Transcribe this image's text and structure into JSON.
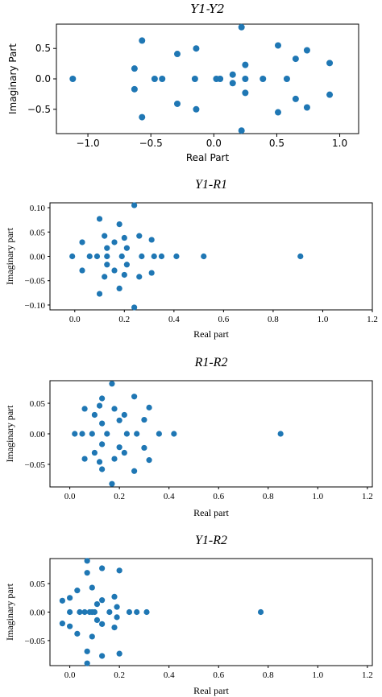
{
  "chart_data": [
    {
      "type": "scatter",
      "title": "Y1-Y2",
      "xlabel": "Real Part",
      "ylabel": "Imaginary Part",
      "xlim": [
        -1.25,
        1.15
      ],
      "ylim": [
        -0.9,
        0.9
      ],
      "xticks": [
        -1.0,
        -0.5,
        0.0,
        0.5,
        1.0
      ],
      "xtick_labels": [
        "−1.0",
        "−0.5",
        "0.0",
        "0.5",
        "1.0"
      ],
      "yticks": [
        0.5,
        0.0,
        -0.5
      ],
      "ytick_labels": [
        "0.5",
        "0.0",
        "−0.5"
      ],
      "grid": false,
      "points": [
        {
          "x": -1.12,
          "y": 0.0
        },
        {
          "x": -0.63,
          "y": 0.17
        },
        {
          "x": -0.63,
          "y": -0.17
        },
        {
          "x": -0.57,
          "y": 0.63
        },
        {
          "x": -0.57,
          "y": -0.63
        },
        {
          "x": -0.47,
          "y": 0.0
        },
        {
          "x": -0.41,
          "y": 0.0
        },
        {
          "x": -0.29,
          "y": 0.41
        },
        {
          "x": -0.29,
          "y": -0.41
        },
        {
          "x": -0.15,
          "y": 0.0
        },
        {
          "x": -0.14,
          "y": 0.5
        },
        {
          "x": -0.14,
          "y": -0.5
        },
        {
          "x": 0.02,
          "y": 0.0
        },
        {
          "x": 0.05,
          "y": 0.0
        },
        {
          "x": 0.15,
          "y": 0.07
        },
        {
          "x": 0.15,
          "y": -0.07
        },
        {
          "x": 0.22,
          "y": 0.85
        },
        {
          "x": 0.22,
          "y": -0.85
        },
        {
          "x": 0.25,
          "y": 0.23
        },
        {
          "x": 0.25,
          "y": -0.23
        },
        {
          "x": 0.25,
          "y": 0.0
        },
        {
          "x": 0.39,
          "y": 0.0
        },
        {
          "x": 0.51,
          "y": 0.55
        },
        {
          "x": 0.51,
          "y": -0.55
        },
        {
          "x": 0.58,
          "y": 0.0
        },
        {
          "x": 0.65,
          "y": 0.33
        },
        {
          "x": 0.65,
          "y": -0.33
        },
        {
          "x": 0.74,
          "y": 0.47
        },
        {
          "x": 0.74,
          "y": -0.47
        },
        {
          "x": 0.92,
          "y": 0.26
        },
        {
          "x": 0.92,
          "y": -0.26
        }
      ]
    },
    {
      "type": "scatter",
      "title": "Y1-R1",
      "xlabel": "Real part",
      "ylabel": "Imaginary part",
      "xlim": [
        -0.1,
        1.2
      ],
      "ylim": [
        -0.11,
        0.11
      ],
      "xticks": [
        0.0,
        0.2,
        0.4,
        0.6,
        0.8,
        1.0,
        1.2
      ],
      "xtick_labels": [
        "0.0",
        "0.2",
        "0.4",
        "0.6",
        "0.8",
        "1.0",
        "1.2"
      ],
      "yticks": [
        0.1,
        0.05,
        0.0,
        -0.05,
        -0.1
      ],
      "ytick_labels": [
        "0.10",
        "0.05",
        "0.00",
        "−0.05",
        "−0.10"
      ],
      "grid": false,
      "points": [
        {
          "x": -0.01,
          "y": 0.0
        },
        {
          "x": 0.03,
          "y": 0.029
        },
        {
          "x": 0.03,
          "y": -0.029
        },
        {
          "x": 0.06,
          "y": 0.0
        },
        {
          "x": 0.09,
          "y": 0.0
        },
        {
          "x": 0.1,
          "y": 0.077
        },
        {
          "x": 0.1,
          "y": -0.077
        },
        {
          "x": 0.12,
          "y": 0.042
        },
        {
          "x": 0.12,
          "y": -0.042
        },
        {
          "x": 0.13,
          "y": 0.017
        },
        {
          "x": 0.13,
          "y": -0.017
        },
        {
          "x": 0.13,
          "y": 0.0
        },
        {
          "x": 0.16,
          "y": 0.029
        },
        {
          "x": 0.16,
          "y": -0.029
        },
        {
          "x": 0.18,
          "y": 0.066
        },
        {
          "x": 0.18,
          "y": -0.066
        },
        {
          "x": 0.19,
          "y": 0.0
        },
        {
          "x": 0.2,
          "y": 0.038
        },
        {
          "x": 0.2,
          "y": -0.038
        },
        {
          "x": 0.21,
          "y": 0.017
        },
        {
          "x": 0.21,
          "y": -0.017
        },
        {
          "x": 0.24,
          "y": 0.105
        },
        {
          "x": 0.24,
          "y": -0.105
        },
        {
          "x": 0.26,
          "y": 0.042
        },
        {
          "x": 0.26,
          "y": -0.042
        },
        {
          "x": 0.27,
          "y": 0.0
        },
        {
          "x": 0.31,
          "y": 0.034
        },
        {
          "x": 0.31,
          "y": -0.034
        },
        {
          "x": 0.32,
          "y": 0.0
        },
        {
          "x": 0.35,
          "y": 0.0
        },
        {
          "x": 0.41,
          "y": 0.0
        },
        {
          "x": 0.52,
          "y": 0.0
        },
        {
          "x": 0.91,
          "y": 0.0
        }
      ]
    },
    {
      "type": "scatter",
      "title": "R1-R2",
      "xlabel": "Real part",
      "ylabel": "Imaginary part",
      "xlim": [
        -0.08,
        1.22
      ],
      "ylim": [
        -0.087,
        0.087
      ],
      "xticks": [
        0.0,
        0.2,
        0.4,
        0.6,
        0.8,
        1.0,
        1.2
      ],
      "xtick_labels": [
        "0.0",
        "0.2",
        "0.4",
        "0.6",
        "0.8",
        "1.0",
        "1.2"
      ],
      "yticks": [
        0.05,
        0.0,
        -0.05
      ],
      "ytick_labels": [
        "0.05",
        "0.00",
        "−0.05"
      ],
      "grid": false,
      "points": [
        {
          "x": 0.02,
          "y": 0.0
        },
        {
          "x": 0.05,
          "y": 0.0
        },
        {
          "x": 0.06,
          "y": 0.041
        },
        {
          "x": 0.06,
          "y": -0.041
        },
        {
          "x": 0.09,
          "y": 0.0
        },
        {
          "x": 0.1,
          "y": 0.031
        },
        {
          "x": 0.1,
          "y": -0.031
        },
        {
          "x": 0.12,
          "y": 0.046
        },
        {
          "x": 0.12,
          "y": -0.046
        },
        {
          "x": 0.13,
          "y": 0.058
        },
        {
          "x": 0.13,
          "y": -0.058
        },
        {
          "x": 0.13,
          "y": 0.017
        },
        {
          "x": 0.13,
          "y": -0.017
        },
        {
          "x": 0.15,
          "y": 0.0
        },
        {
          "x": 0.17,
          "y": 0.082
        },
        {
          "x": 0.17,
          "y": -0.082
        },
        {
          "x": 0.18,
          "y": 0.041
        },
        {
          "x": 0.18,
          "y": -0.041
        },
        {
          "x": 0.2,
          "y": 0.022
        },
        {
          "x": 0.2,
          "y": -0.022
        },
        {
          "x": 0.22,
          "y": 0.031
        },
        {
          "x": 0.22,
          "y": -0.031
        },
        {
          "x": 0.23,
          "y": 0.0
        },
        {
          "x": 0.26,
          "y": 0.061
        },
        {
          "x": 0.26,
          "y": -0.061
        },
        {
          "x": 0.27,
          "y": 0.0
        },
        {
          "x": 0.3,
          "y": 0.023
        },
        {
          "x": 0.3,
          "y": -0.023
        },
        {
          "x": 0.32,
          "y": 0.043
        },
        {
          "x": 0.32,
          "y": -0.043
        },
        {
          "x": 0.36,
          "y": 0.0
        },
        {
          "x": 0.42,
          "y": 0.0
        },
        {
          "x": 0.85,
          "y": 0.0
        }
      ]
    },
    {
      "type": "scatter",
      "title": "Y1-R2",
      "xlabel": "Real part",
      "ylabel": "Imaginary part",
      "xlim": [
        -0.08,
        1.22
      ],
      "ylim": [
        -0.094,
        0.094
      ],
      "xticks": [
        0.0,
        0.2,
        0.4,
        0.6,
        0.8,
        1.0,
        1.2
      ],
      "xtick_labels": [
        "0.0",
        "0.2",
        "0.4",
        "0.6",
        "0.8",
        "1.0",
        "1.2"
      ],
      "yticks": [
        0.05,
        0.0,
        -0.05
      ],
      "ytick_labels": [
        "0.05",
        "0.00",
        "−0.05"
      ],
      "grid": false,
      "points": [
        {
          "x": -0.03,
          "y": 0.02
        },
        {
          "x": -0.03,
          "y": -0.02
        },
        {
          "x": 0.0,
          "y": 0.025
        },
        {
          "x": 0.0,
          "y": -0.025
        },
        {
          "x": 0.0,
          "y": 0.0
        },
        {
          "x": 0.03,
          "y": 0.038
        },
        {
          "x": 0.03,
          "y": -0.038
        },
        {
          "x": 0.04,
          "y": 0.0
        },
        {
          "x": 0.06,
          "y": 0.0
        },
        {
          "x": 0.07,
          "y": 0.09
        },
        {
          "x": 0.07,
          "y": -0.09
        },
        {
          "x": 0.07,
          "y": 0.069
        },
        {
          "x": 0.07,
          "y": -0.069
        },
        {
          "x": 0.08,
          "y": 0.0
        },
        {
          "x": 0.09,
          "y": 0.0
        },
        {
          "x": 0.09,
          "y": 0.043
        },
        {
          "x": 0.09,
          "y": -0.043
        },
        {
          "x": 0.1,
          "y": 0.0
        },
        {
          "x": 0.11,
          "y": 0.014
        },
        {
          "x": 0.11,
          "y": -0.014
        },
        {
          "x": 0.13,
          "y": 0.077
        },
        {
          "x": 0.13,
          "y": -0.077
        },
        {
          "x": 0.13,
          "y": 0.021
        },
        {
          "x": 0.13,
          "y": -0.021
        },
        {
          "x": 0.16,
          "y": 0.0
        },
        {
          "x": 0.18,
          "y": 0.027
        },
        {
          "x": 0.18,
          "y": -0.027
        },
        {
          "x": 0.19,
          "y": 0.009
        },
        {
          "x": 0.19,
          "y": -0.009
        },
        {
          "x": 0.2,
          "y": 0.073
        },
        {
          "x": 0.2,
          "y": -0.073
        },
        {
          "x": 0.24,
          "y": 0.0
        },
        {
          "x": 0.27,
          "y": 0.0
        },
        {
          "x": 0.31,
          "y": 0.0
        },
        {
          "x": 0.77,
          "y": 0.0
        }
      ]
    }
  ]
}
